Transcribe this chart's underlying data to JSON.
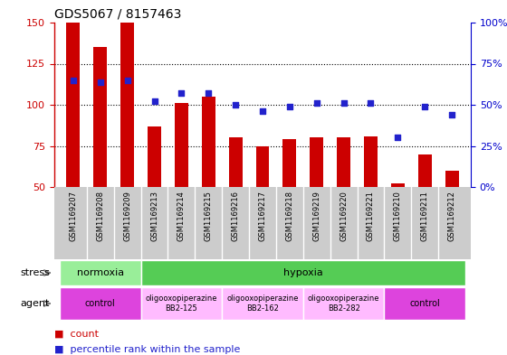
{
  "title": "GDS5067 / 8157463",
  "samples": [
    "GSM1169207",
    "GSM1169208",
    "GSM1169209",
    "GSM1169213",
    "GSM1169214",
    "GSM1169215",
    "GSM1169216",
    "GSM1169217",
    "GSM1169218",
    "GSM1169219",
    "GSM1169220",
    "GSM1169221",
    "GSM1169210",
    "GSM1169211",
    "GSM1169212"
  ],
  "counts": [
    150,
    135,
    150,
    87,
    101,
    105,
    80,
    75,
    79,
    80,
    80,
    81,
    52,
    70,
    60
  ],
  "percentile": [
    65,
    64,
    65,
    52,
    57,
    57,
    50,
    46,
    49,
    51,
    51,
    51,
    30,
    49,
    44
  ],
  "ylim_left": [
    50,
    150
  ],
  "ylim_right": [
    0,
    100
  ],
  "yticks_left": [
    50,
    75,
    100,
    125,
    150
  ],
  "yticks_right": [
    0,
    25,
    50,
    75,
    100
  ],
  "bar_color": "#cc0000",
  "dot_color": "#2222cc",
  "bar_width": 0.5,
  "stress_groups": [
    {
      "label": "normoxia",
      "start": 0,
      "end": 3,
      "color": "#99ee99"
    },
    {
      "label": "hypoxia",
      "start": 3,
      "end": 15,
      "color": "#55cc55"
    }
  ],
  "agent_groups": [
    {
      "label": "control",
      "start": 0,
      "end": 3,
      "color": "#dd44dd",
      "text_lines": [
        "control"
      ]
    },
    {
      "label": "oligooxopiperazine\nBB2-125",
      "start": 3,
      "end": 6,
      "color": "#ffbbff",
      "text_lines": [
        "oligooxopiperazine",
        "BB2-125"
      ]
    },
    {
      "label": "oligooxopiperazine\nBB2-162",
      "start": 6,
      "end": 9,
      "color": "#ffbbff",
      "text_lines": [
        "oligooxopiperazine",
        "BB2-162"
      ]
    },
    {
      "label": "oligooxopiperazine\nBB2-282",
      "start": 9,
      "end": 12,
      "color": "#ffbbff",
      "text_lines": [
        "oligooxopiperazine",
        "BB2-282"
      ]
    },
    {
      "label": "control",
      "start": 12,
      "end": 15,
      "color": "#dd44dd",
      "text_lines": [
        "control"
      ]
    }
  ],
  "xtick_bg_color": "#cccccc",
  "background_color": "#ffffff",
  "left_spine_color": "#cc0000",
  "right_spine_color": "#0000cc"
}
